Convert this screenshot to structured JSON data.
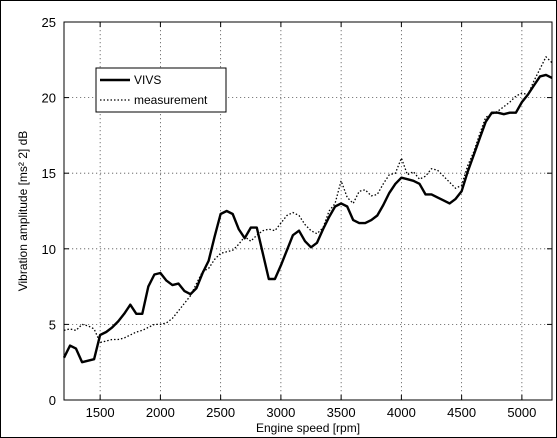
{
  "chart_data": {
    "type": "line",
    "title": "",
    "xlabel": "Engine speed [rpm]",
    "ylabel": "Vibration amplitude [ms² 2] dB",
    "xlim": [
      1200,
      5250
    ],
    "ylim": [
      0,
      25
    ],
    "xticks": [
      "1500",
      "2000",
      "2500",
      "3000",
      "3500",
      "4000",
      "4500",
      "5000"
    ],
    "yticks": [
      "0",
      "5",
      "10",
      "15",
      "20",
      "25"
    ],
    "grid": true,
    "legend_position": "top-left",
    "series": [
      {
        "name": "VIVS",
        "style": "solid-thick",
        "color": "#000000",
        "x": [
          1200,
          1250,
          1300,
          1350,
          1400,
          1450,
          1500,
          1550,
          1600,
          1650,
          1700,
          1750,
          1800,
          1850,
          1900,
          1950,
          2000,
          2050,
          2100,
          2150,
          2200,
          2250,
          2300,
          2350,
          2400,
          2450,
          2500,
          2550,
          2600,
          2650,
          2700,
          2750,
          2800,
          2850,
          2900,
          2950,
          3000,
          3050,
          3100,
          3150,
          3200,
          3250,
          3300,
          3350,
          3400,
          3450,
          3500,
          3550,
          3600,
          3650,
          3700,
          3750,
          3800,
          3850,
          3900,
          3950,
          4000,
          4050,
          4100,
          4150,
          4200,
          4250,
          4300,
          4350,
          4400,
          4450,
          4500,
          4550,
          4600,
          4650,
          4700,
          4750,
          4800,
          4850,
          4900,
          4950,
          5000,
          5050,
          5100,
          5150,
          5200,
          5250
        ],
        "y": [
          2.8,
          3.6,
          3.4,
          2.5,
          2.6,
          2.7,
          4.3,
          4.5,
          4.8,
          5.2,
          5.7,
          6.3,
          5.7,
          5.7,
          7.5,
          8.3,
          8.4,
          7.9,
          7.6,
          7.7,
          7.2,
          7.0,
          7.4,
          8.4,
          9.2,
          10.8,
          12.3,
          12.5,
          12.3,
          11.3,
          10.7,
          11.4,
          11.4,
          9.7,
          8.0,
          8.0,
          8.9,
          9.9,
          10.9,
          11.2,
          10.5,
          10.1,
          10.4,
          11.3,
          12.1,
          12.8,
          13.0,
          12.8,
          11.9,
          11.7,
          11.7,
          11.9,
          12.2,
          12.9,
          13.7,
          14.3,
          14.7,
          14.6,
          14.5,
          14.3,
          13.6,
          13.6,
          13.4,
          13.2,
          13.0,
          13.3,
          13.8,
          15.1,
          16.2,
          17.3,
          18.4,
          19.0,
          19.0,
          18.9,
          19.0,
          19.0,
          19.7,
          20.2,
          20.8,
          21.4,
          21.5,
          21.3
        ]
      },
      {
        "name": "measurement",
        "style": "dotted",
        "color": "#000000",
        "x": [
          1200,
          1250,
          1300,
          1350,
          1400,
          1450,
          1500,
          1550,
          1600,
          1650,
          1700,
          1750,
          1800,
          1850,
          1900,
          1950,
          2000,
          2050,
          2100,
          2150,
          2200,
          2250,
          2300,
          2350,
          2400,
          2450,
          2500,
          2550,
          2600,
          2650,
          2700,
          2750,
          2800,
          2850,
          2900,
          2950,
          3000,
          3050,
          3100,
          3150,
          3200,
          3250,
          3300,
          3350,
          3400,
          3450,
          3500,
          3550,
          3600,
          3650,
          3700,
          3750,
          3800,
          3850,
          3900,
          3950,
          4000,
          4050,
          4100,
          4150,
          4200,
          4250,
          4300,
          4350,
          4400,
          4450,
          4500,
          4550,
          4600,
          4650,
          4700,
          4750,
          4800,
          4850,
          4900,
          4950,
          5000,
          5050,
          5100,
          5150,
          5200,
          5250
        ],
        "y": [
          4.6,
          4.7,
          4.6,
          5.0,
          4.9,
          4.7,
          3.8,
          3.9,
          4.0,
          4.0,
          4.1,
          4.3,
          4.5,
          4.6,
          4.8,
          5.0,
          5.0,
          5.1,
          5.4,
          5.9,
          6.4,
          6.9,
          7.7,
          8.5,
          8.7,
          9.3,
          9.7,
          9.8,
          9.9,
          10.3,
          10.8,
          10.5,
          10.9,
          11.2,
          11.3,
          11.2,
          11.7,
          12.2,
          12.4,
          12.2,
          11.6,
          11.2,
          11.0,
          11.4,
          12.5,
          13.0,
          14.5,
          13.4,
          13.0,
          13.8,
          13.9,
          13.5,
          13.6,
          14.3,
          14.9,
          15.0,
          16.0,
          14.9,
          15.1,
          14.6,
          14.8,
          15.3,
          15.2,
          14.8,
          14.4,
          14.0,
          14.2,
          15.5,
          16.4,
          17.6,
          18.7,
          18.9,
          19.1,
          19.4,
          19.7,
          20.1,
          20.3,
          20.2,
          21.1,
          21.9,
          22.7,
          22.3
        ]
      }
    ]
  }
}
